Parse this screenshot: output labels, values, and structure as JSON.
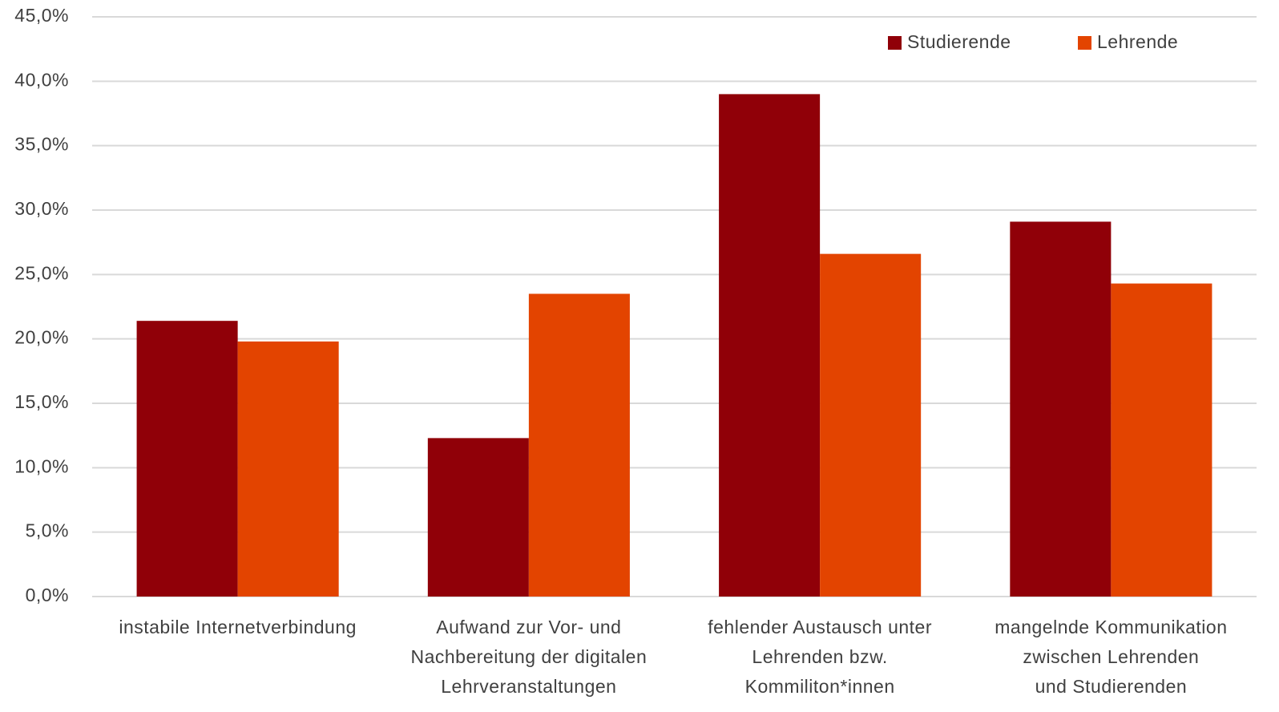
{
  "chart_data": {
    "type": "bar",
    "categories": [
      [
        "instabile Internetverbindung"
      ],
      [
        "Aufwand zur Vor- und",
        "Nachbereitung der digitalen",
        "Lehrveranstaltungen"
      ],
      [
        "fehlender Austausch unter",
        "Lehrenden bzw.",
        "Kommiliton*innen"
      ],
      [
        "mangelnde Kommunikation",
        "zwischen Lehrenden",
        "und Studierenden"
      ]
    ],
    "series": [
      {
        "name": "Studierende",
        "color": "#900008",
        "values": [
          21.4,
          12.3,
          39.0,
          29.1
        ]
      },
      {
        "name": "Lehrende",
        "color": "#e34400",
        "values": [
          19.8,
          23.5,
          26.6,
          24.3
        ]
      }
    ],
    "ylim": [
      0,
      45
    ],
    "yticks": [
      {
        "value": 0,
        "label": "0,0%"
      },
      {
        "value": 5,
        "label": "5,0%"
      },
      {
        "value": 10,
        "label": "10,0%"
      },
      {
        "value": 15,
        "label": "15,0%"
      },
      {
        "value": 20,
        "label": "20,0%"
      },
      {
        "value": 25,
        "label": "25,0%"
      },
      {
        "value": 30,
        "label": "30,0%"
      },
      {
        "value": 35,
        "label": "35,0%"
      },
      {
        "value": 40,
        "label": "40,0%"
      },
      {
        "value": 45,
        "label": "45,0%"
      }
    ],
    "grid": true,
    "legend": "top-right"
  }
}
